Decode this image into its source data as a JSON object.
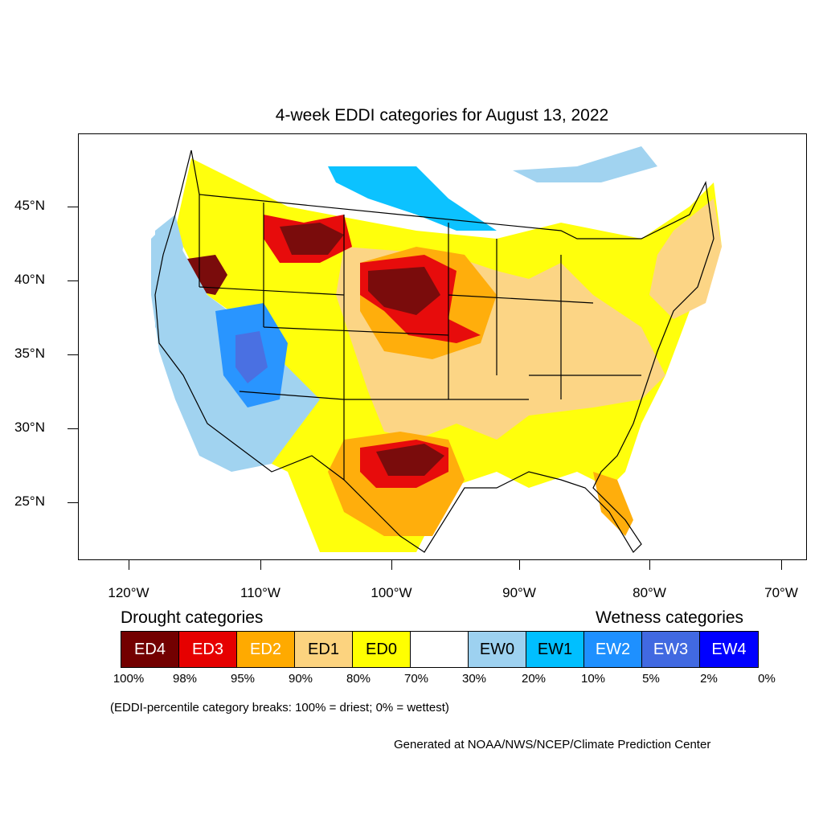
{
  "title": "4-week EDDI categories for August 13, 2022",
  "lat_labels": [
    "45°N",
    "40°N",
    "35°N",
    "30°N",
    "25°N"
  ],
  "lon_labels": [
    "120°W",
    "110°W",
    "100°W",
    "90°W",
    "80°W",
    "70°W"
  ],
  "legend": {
    "drought_heading": "Drought categories",
    "wetness_heading": "Wetness categories",
    "categories": [
      {
        "label": "ED4",
        "color": "#730000",
        "text_color": "#ffffff"
      },
      {
        "label": "ED3",
        "color": "#e60000",
        "text_color": "#ffffff"
      },
      {
        "label": "ED2",
        "color": "#ffaa00",
        "text_color": "#ffffff"
      },
      {
        "label": "ED1",
        "color": "#fcd37f",
        "text_color": "#000000"
      },
      {
        "label": "ED0",
        "color": "#ffff00",
        "text_color": "#000000"
      },
      {
        "label": "",
        "color": "#ffffff",
        "text_color": "#000000"
      },
      {
        "label": "EW0",
        "color": "#9dd1f0",
        "text_color": "#000000"
      },
      {
        "label": "EW1",
        "color": "#00bfff",
        "text_color": "#000000"
      },
      {
        "label": "EW2",
        "color": "#1e90ff",
        "text_color": "#ffffff"
      },
      {
        "label": "EW3",
        "color": "#4169e1",
        "text_color": "#ffffff"
      },
      {
        "label": "EW4",
        "color": "#0000ff",
        "text_color": "#ffffff"
      }
    ],
    "breaks": [
      "100%",
      "98%",
      "95%",
      "90%",
      "80%",
      "70%",
      "30%",
      "20%",
      "10%",
      "5%",
      "2%",
      "0%"
    ]
  },
  "note": "(EDDI-percentile category breaks: 100% = driest; 0% = wettest)",
  "credit": "Generated at NOAA/NWS/NCEP/Climate Prediction Center"
}
